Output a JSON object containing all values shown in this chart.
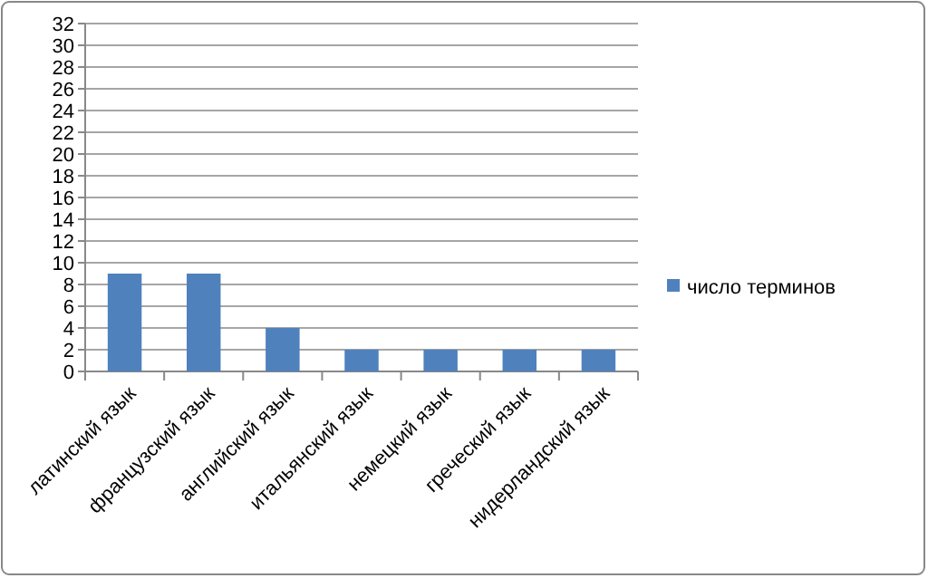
{
  "chart_data": {
    "type": "bar",
    "categories": [
      "латинский язык",
      "французский язык",
      "английский язык",
      "итальянский язык",
      "немецкий язык",
      "греческий язык",
      "нидерландский язык"
    ],
    "series": [
      {
        "name": "число терминов",
        "color": "#4f81bd",
        "values": [
          9,
          9,
          4,
          2,
          2,
          2,
          2
        ]
      }
    ],
    "ylim": [
      0,
      32
    ],
    "yticks": [
      0,
      2,
      4,
      6,
      8,
      10,
      12,
      14,
      16,
      18,
      20,
      22,
      24,
      26,
      28,
      30,
      32
    ],
    "grid": "y",
    "legend": "right"
  }
}
